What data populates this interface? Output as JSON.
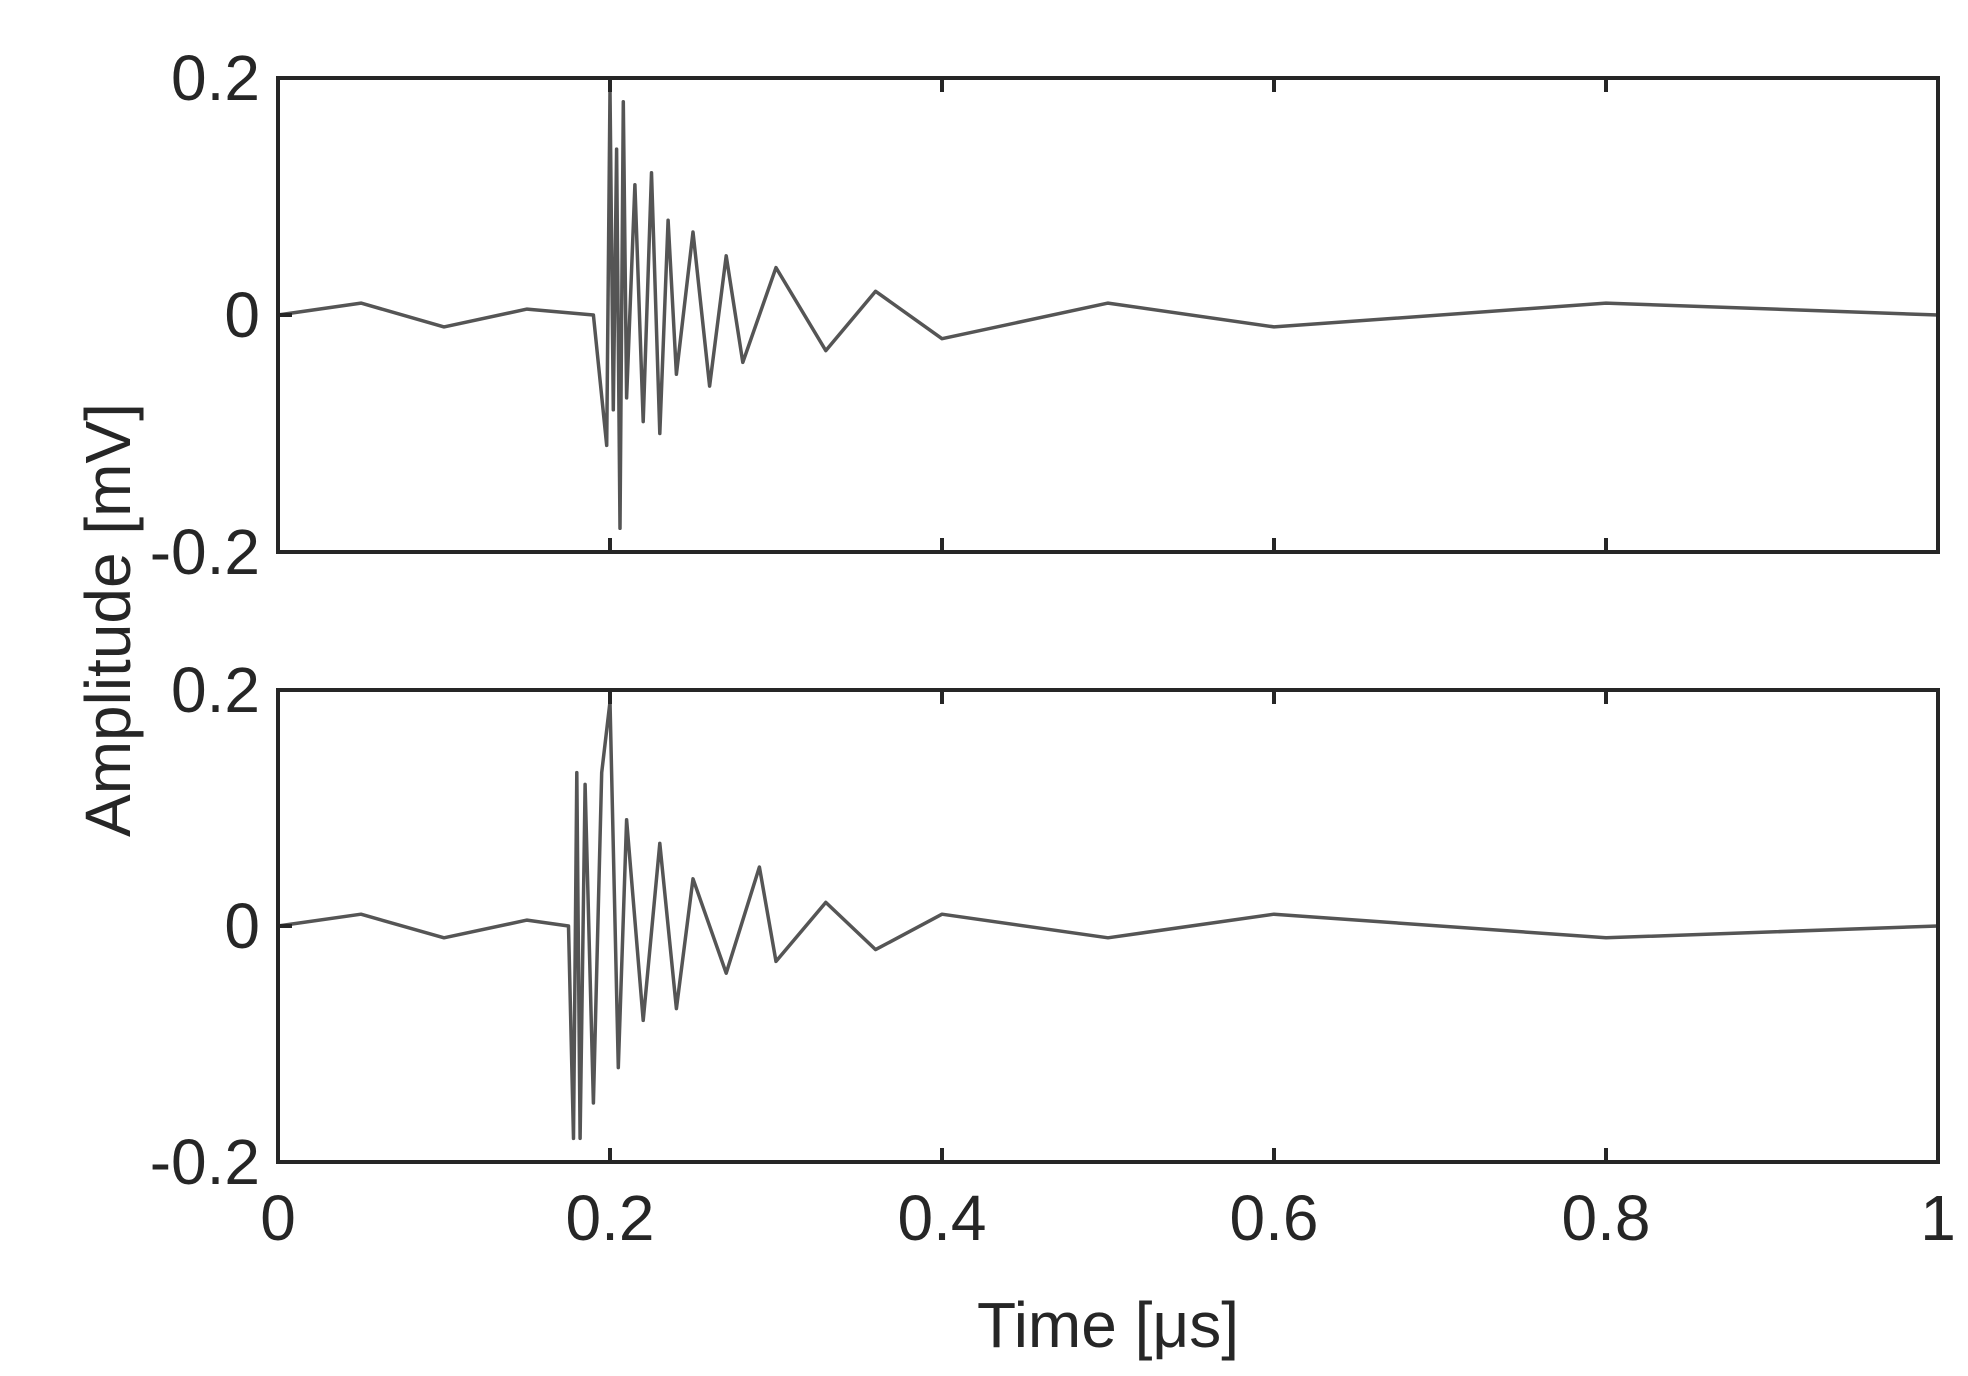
{
  "chart_data": [
    {
      "type": "line",
      "title": "",
      "xlabel": "",
      "ylabel": "",
      "xlim": [
        0,
        1
      ],
      "ylim": [
        -0.2,
        0.2
      ],
      "yticks": [
        0.2,
        0,
        -0.2
      ],
      "ytick_labels": [
        "0.2",
        "0",
        "-0.2"
      ],
      "xticks": [
        0,
        0.2,
        0.4,
        0.6,
        0.8,
        1
      ],
      "xtick_labels": [],
      "grid": false,
      "series": [
        {
          "color": "#555555",
          "x": [
            0,
            0.05,
            0.1,
            0.15,
            0.19,
            0.198,
            0.2,
            0.202,
            0.204,
            0.206,
            0.208,
            0.21,
            0.215,
            0.22,
            0.225,
            0.23,
            0.235,
            0.24,
            0.25,
            0.26,
            0.27,
            0.28,
            0.3,
            0.33,
            0.36,
            0.4,
            0.5,
            0.6,
            0.8,
            1.0
          ],
          "y": [
            0,
            0.01,
            -0.01,
            0.005,
            0.0,
            -0.11,
            0.19,
            -0.08,
            0.14,
            -0.18,
            0.18,
            -0.07,
            0.11,
            -0.09,
            0.12,
            -0.1,
            0.08,
            -0.05,
            0.07,
            -0.06,
            0.05,
            -0.04,
            0.04,
            -0.03,
            0.02,
            -0.02,
            0.01,
            -0.01,
            0.01,
            0.0
          ]
        }
      ]
    },
    {
      "type": "line",
      "title": "",
      "xlabel": "Time [μs]",
      "ylabel": "",
      "xlim": [
        0,
        1
      ],
      "ylim": [
        -0.2,
        0.2
      ],
      "yticks": [
        0.2,
        0,
        -0.2
      ],
      "ytick_labels": [
        "0.2",
        "0",
        "-0.2"
      ],
      "xticks": [
        0,
        0.2,
        0.4,
        0.6,
        0.8,
        1
      ],
      "xtick_labels": [
        "0",
        "0.2",
        "0.4",
        "0.6",
        "0.8",
        "1"
      ],
      "grid": false,
      "series": [
        {
          "color": "#555555",
          "x": [
            0,
            0.05,
            0.1,
            0.15,
            0.175,
            0.178,
            0.18,
            0.182,
            0.185,
            0.19,
            0.195,
            0.2,
            0.205,
            0.21,
            0.22,
            0.23,
            0.24,
            0.25,
            0.27,
            0.29,
            0.3,
            0.33,
            0.36,
            0.4,
            0.5,
            0.6,
            0.8,
            1.0
          ],
          "y": [
            0,
            0.01,
            -0.01,
            0.005,
            0.0,
            -0.18,
            0.13,
            -0.18,
            0.12,
            -0.15,
            0.13,
            0.19,
            -0.12,
            0.09,
            -0.08,
            0.07,
            -0.07,
            0.04,
            -0.04,
            0.05,
            -0.03,
            0.02,
            -0.02,
            0.01,
            -0.01,
            0.01,
            -0.01,
            0.0
          ]
        }
      ]
    }
  ],
  "shared_ylabel": "Amplitude [mV]"
}
